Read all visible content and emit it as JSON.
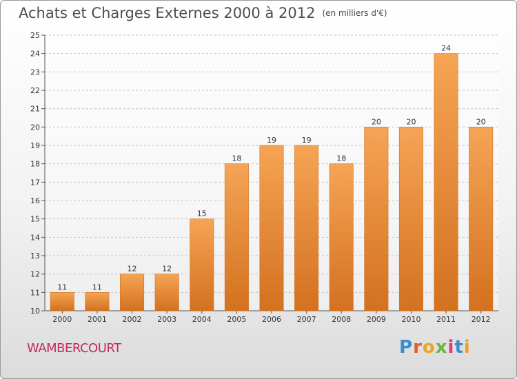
{
  "title": "Achats et Charges Externes 2000 à 2012",
  "subtitle": "(en milliers d'€)",
  "commune": "WAMBERCOURT",
  "logo": {
    "text": "Proxiti",
    "colors": [
      "#3a8fd0",
      "#e85a2c",
      "#f0a21c",
      "#6cb33f",
      "#e03a6e",
      "#3a8fd0",
      "#f0a21c"
    ]
  },
  "colors": {
    "bar_top": "#f5a455",
    "bar_bottom": "#d3711f",
    "title": "#4d4d4d",
    "commune": "#c8285a"
  },
  "chart_data": {
    "type": "bar",
    "categories": [
      "2000",
      "2001",
      "2002",
      "2003",
      "2004",
      "2005",
      "2006",
      "2007",
      "2008",
      "2009",
      "2010",
      "2011",
      "2012"
    ],
    "values": [
      11,
      11,
      12,
      12,
      15,
      18,
      19,
      19,
      18,
      20,
      20,
      24,
      20
    ],
    "yticks": [
      10,
      11,
      12,
      13,
      14,
      15,
      16,
      17,
      18,
      19,
      20,
      21,
      22,
      23,
      24,
      25
    ],
    "ylim": [
      10,
      25
    ],
    "grid": true,
    "title": "Achats et Charges Externes 2000 à 2012",
    "xlabel": "",
    "ylabel": ""
  }
}
